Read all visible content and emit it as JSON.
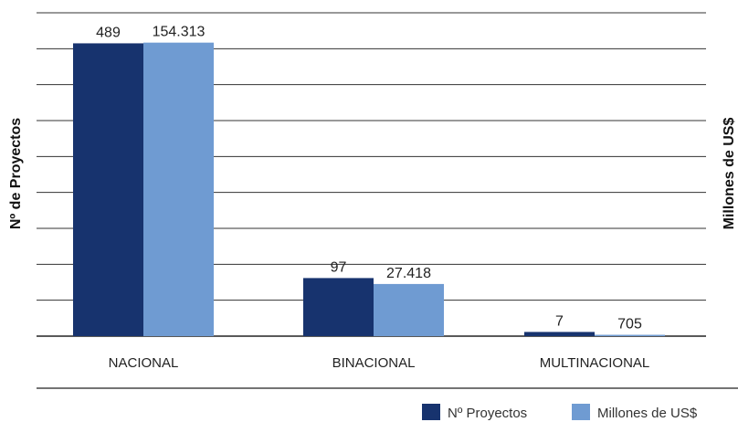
{
  "chart_data": {
    "type": "bar",
    "title": "",
    "ylabel_left": "Nº de Proyectos",
    "ylabel_right": "Millones de US$",
    "categories": [
      "NACIONAL",
      "BINACIONAL",
      "MULTINACIONAL"
    ],
    "series": [
      {
        "name": "Nº Proyectos",
        "values": [
          489,
          97,
          7
        ],
        "labels": [
          "489",
          "97",
          "7"
        ],
        "color": "#17336e",
        "axis": "left"
      },
      {
        "name": "Millones de US$",
        "values": [
          154313,
          27418,
          705
        ],
        "labels": [
          "154.313",
          "27.418",
          "705"
        ],
        "color": "#6f9bd2",
        "axis": "right"
      }
    ],
    "grid": true,
    "legend_position": "bottom-right"
  }
}
